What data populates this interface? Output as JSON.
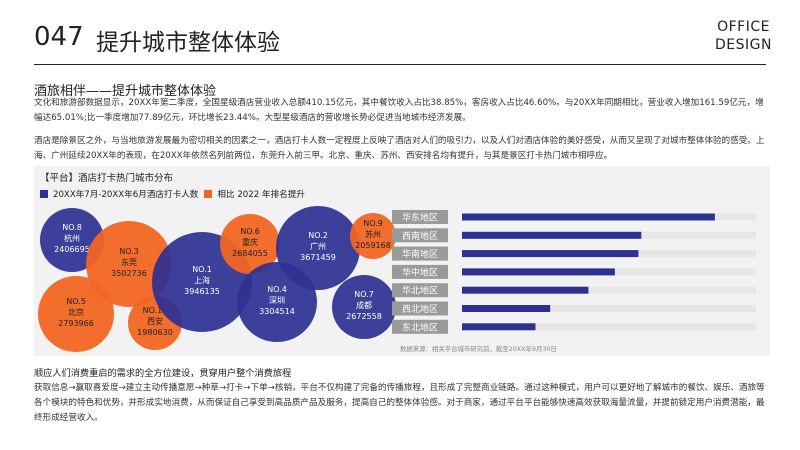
{
  "header": {
    "page_number": "047",
    "title": "提升城市整体体验",
    "brand_line1": "OFFICE",
    "brand_line2": "DESIGN"
  },
  "section": {
    "title": "酒旅相伴——提升城市整体体验",
    "paragraph1": "文化和旅游部数据显示，20XX年第二季度，全国星级酒店营业收入总额410.15亿元，其中餐饮收入占比38.85%，客房收入占比46.60%。与20XX年同期相比，营业收入增加161.59亿元，增幅达65.01%;比一季度增加77.89亿元，环比增长23.44%。大型星级酒店的营收增长势必促进当地城市经济发展。",
    "paragraph2": "酒店是除景区之外，与当地旅游发展最为密切相关的因素之一，酒店打卡人数一定程度上反映了酒店对人们的吸引力，以及人们对酒店体验的美好感受，从而又呈现了对城市整体体验的感受。上海、广州延续20XX年的表现，在20XX年依然名列前两位，东莞升入前三甲。北京、重庆、苏州、西安排名均有提升，与其是景区打卡热门城市相呼应。"
  },
  "panel": {
    "title": "【平台】酒店打卡热门城市分布",
    "legend_blue": "20XX年7月-20XX年6月酒店打卡人数",
    "legend_orange": "相比 2022 年排名提升",
    "source": "数据来源：相关平台城市研究前，截至20XX年9月30日"
  },
  "colors": {
    "blue": "#2e3192",
    "orange": "#f26522",
    "track": "#e6e6e6",
    "label_box": "#9a9a9a"
  },
  "chart_data": [
    {
      "type": "bubble",
      "series": [
        {
          "name": "20XX年7月-20XX年6月酒店打卡人数"
        },
        {
          "name": "相比 2022 年排名提升"
        }
      ],
      "points": [
        {
          "rank": "NO.1",
          "city": "上海",
          "value": 3946135,
          "highlight": false
        },
        {
          "rank": "NO.2",
          "city": "广州",
          "value": 3671459,
          "highlight": false
        },
        {
          "rank": "NO.3",
          "city": "东莞",
          "value": 3502736,
          "highlight": true
        },
        {
          "rank": "NO.4",
          "city": "深圳",
          "value": 3304514,
          "highlight": false
        },
        {
          "rank": "NO.5",
          "city": "北京",
          "value": 2793966,
          "highlight": true
        },
        {
          "rank": "NO.6",
          "city": "重庆",
          "value": 2684055,
          "highlight": true
        },
        {
          "rank": "NO.7",
          "city": "成都",
          "value": 2672558,
          "highlight": false
        },
        {
          "rank": "NO.8",
          "city": "杭州",
          "value": 2406695,
          "highlight": false
        },
        {
          "rank": "NO.9",
          "city": "苏州",
          "value": 2059168,
          "highlight": true
        },
        {
          "rank": "NO.10",
          "city": "西安",
          "value": 1980630,
          "highlight": true
        }
      ]
    },
    {
      "type": "bar",
      "orientation": "horizontal",
      "categories": [
        "华东地区",
        "西南地区",
        "华南地区",
        "华中地区",
        "华北地区",
        "西北地区",
        "东北地区"
      ],
      "values": [
        0.86,
        0.61,
        0.6,
        0.52,
        0.43,
        0.3,
        0.25
      ],
      "xlim": [
        0,
        1
      ],
      "grid": false
    }
  ],
  "footer": {
    "title": "顺应人们消费重启的需求的全方位建设，贯穿用户整个消费旅程",
    "paragraph": "获取信息→赢取喜爱度→建立主动传播意愿→种草→打卡→下单→核销，平台不仅构建了完备的传播旅程，且形成了完整商业链路。通过这种模式，用户可以更好地了解城市的餐饮、娱乐、酒旅等各个模块的特色和优势，并形成实地消费，从而保证自己享受到高品质产品及服务，提高自己的整体体验感。对于商家，通过平台平台能够快速高效获取海量流量，并提前锁定用户消费潜能，最终形成经营收入。"
  }
}
